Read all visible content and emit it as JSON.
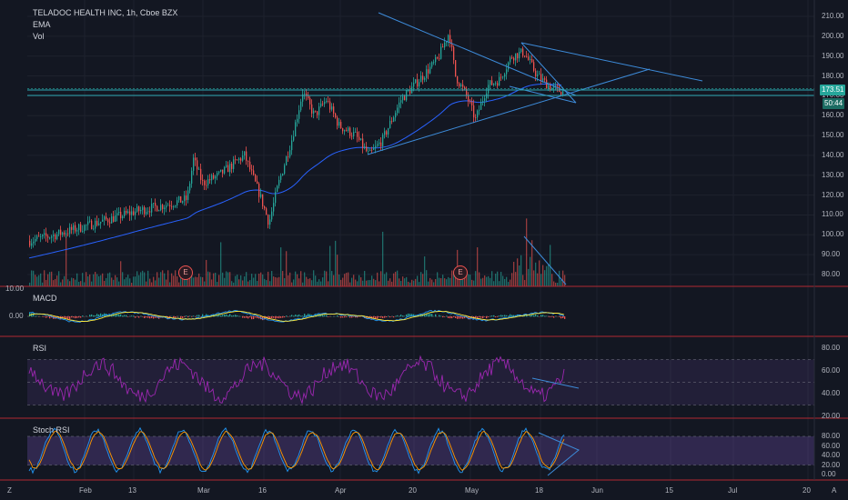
{
  "header": {
    "symbol_line": "TELADOC HEALTH INC, 1h, Cboe BZX",
    "ema_label": "EMA",
    "vol_label": "Vol"
  },
  "price_axis": {
    "ticks": [
      "210.00",
      "200.00",
      "190.00",
      "180.00",
      "170.00",
      "160.00",
      "150.00",
      "140.00",
      "130.00",
      "120.00",
      "110.00",
      "100.00",
      "90.00",
      "80.00"
    ],
    "last_price": "173.51",
    "countdown": "50:44"
  },
  "panes": {
    "macd": {
      "label": "MACD",
      "ticks": [
        "10.00",
        "0.00"
      ]
    },
    "rsi": {
      "label": "RSI",
      "ticks": [
        "80.00",
        "60.00",
        "40.00",
        "20.00"
      ]
    },
    "stoch": {
      "label": "Stoch RSI",
      "ticks": [
        "80.00",
        "60.00",
        "40.00",
        "20.00",
        "0.00"
      ]
    }
  },
  "time_axis": {
    "ticks": [
      "Feb",
      "13",
      "Mar",
      "16",
      "Apr",
      "20",
      "May",
      "18",
      "Jun",
      "15",
      "Jul",
      "20"
    ]
  },
  "earnings_markers": [
    "E",
    "E"
  ],
  "corner_buttons": {
    "left": "Z",
    "right": "A"
  },
  "colors": {
    "background": "#131722",
    "grid": "#1e222d",
    "up": "#26a69a",
    "down": "#ef5350",
    "ema": "#2962ff",
    "trendline": "#3d8bd9",
    "last_price_bg": "#26a69a",
    "pane_divider": "#b22833",
    "rsi": "#9c27b0",
    "macd": "#2196f3",
    "signal": "#ffeb3b"
  },
  "icons": [
    "earnings-marker-icon",
    "auto-scale-icon",
    "zoom-icon"
  ]
}
